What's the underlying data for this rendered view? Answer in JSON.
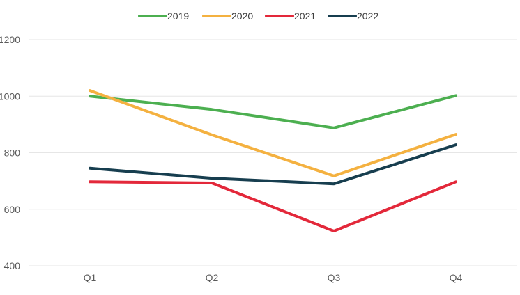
{
  "chart_data": {
    "type": "line",
    "title": "",
    "xlabel": "",
    "ylabel": "",
    "categories": [
      "Q1",
      "Q2",
      "Q3",
      "Q4"
    ],
    "ylim": [
      400,
      1200
    ],
    "yticks": [
      400,
      600,
      800,
      1000,
      1200
    ],
    "grid": true,
    "legend_position": "top-center",
    "series": [
      {
        "name": "2019",
        "color": "#4caf50",
        "values": [
          1000,
          953,
          888,
          1002
        ]
      },
      {
        "name": "2020",
        "color": "#f4b140",
        "values": [
          1020,
          863,
          718,
          865
        ]
      },
      {
        "name": "2021",
        "color": "#e3283a",
        "values": [
          697,
          693,
          523,
          697
        ]
      },
      {
        "name": "2022",
        "color": "#173e4f",
        "values": [
          745,
          710,
          690,
          828
        ]
      }
    ]
  }
}
